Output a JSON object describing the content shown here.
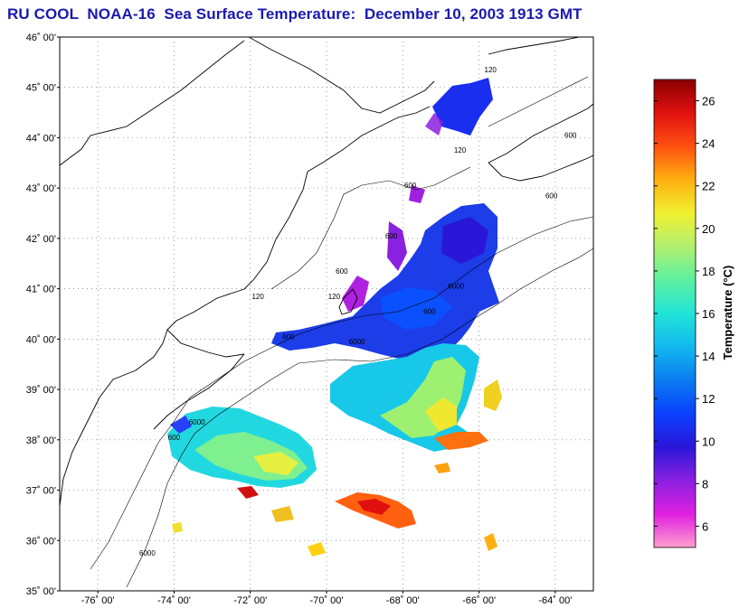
{
  "title": "RU COOL  NOAA-16  Sea Surface Temperature:  December 10, 2003 1913 GMT",
  "map": {
    "lon_range": [
      -77,
      -63
    ],
    "lat_range": [
      35,
      46
    ],
    "lat_labels": [
      "46˚ 00'",
      "45˚ 00'",
      "44˚ 00'",
      "43˚ 00'",
      "42˚ 00'",
      "41˚ 00'",
      "40˚ 00'",
      "39˚ 00'",
      "38˚ 00'",
      "37˚ 00'",
      "36˚ 00'",
      "35˚ 00'"
    ],
    "lat_values": [
      46,
      45,
      44,
      43,
      42,
      41,
      40,
      39,
      38,
      37,
      36,
      35
    ],
    "lon_labels": [
      "-76˚ 00'",
      "-74˚ 00'",
      "-72˚ 00'",
      "-70˚ 00'",
      "-68˚ 00'",
      "-66˚ 00'",
      "-64˚ 00'"
    ],
    "lon_values": [
      -76,
      -74,
      -72,
      -70,
      -68,
      -66,
      -64
    ],
    "grid": "dotted",
    "bathymetry_contours": [
      {
        "label": "120",
        "lon": -65.7,
        "lat": 45.3
      },
      {
        "label": "120",
        "lon": -66.5,
        "lat": 43.7
      },
      {
        "label": "600",
        "lon": -64.1,
        "lat": 42.8
      },
      {
        "label": "600",
        "lon": -68.3,
        "lat": 42.0
      },
      {
        "label": "600",
        "lon": -69.6,
        "lat": 41.3
      },
      {
        "label": "6000",
        "lon": -66.6,
        "lat": 41.0
      },
      {
        "label": "120",
        "lon": -69.8,
        "lat": 40.8
      },
      {
        "label": "600",
        "lon": -67.3,
        "lat": 40.5
      },
      {
        "label": "6000",
        "lon": -69.2,
        "lat": 39.9
      },
      {
        "label": "600",
        "lon": -71.0,
        "lat": 40.0
      },
      {
        "label": "120",
        "lon": -71.8,
        "lat": 40.8
      },
      {
        "label": "6000",
        "lon": -73.4,
        "lat": 38.3
      },
      {
        "label": "600",
        "lon": -74.0,
        "lat": 38.0
      },
      {
        "label": "600",
        "lon": -63.6,
        "lat": 44.0
      },
      {
        "label": "600",
        "lon": -67.8,
        "lat": 43.0
      },
      {
        "label": "6000",
        "lon": -74.7,
        "lat": 35.7
      }
    ]
  },
  "colorbar": {
    "label": "Temperature (°C)",
    "min": 5,
    "max": 27,
    "ticks": [
      6,
      8,
      10,
      12,
      14,
      16,
      18,
      20,
      22,
      24,
      26
    ],
    "stops": [
      "#ff9fd0",
      "#e020e0",
      "#8a20e0",
      "#2a16d8",
      "#0b40ff",
      "#0a7cf0",
      "#12b8ee",
      "#22e4d8",
      "#5cf0a0",
      "#b0f070",
      "#f0f030",
      "#ffb010",
      "#ff5010",
      "#e01010",
      "#8a0000"
    ]
  },
  "sst_patches": [
    {
      "lon": -66.9,
      "lat": 44.7,
      "temp": 8.6
    },
    {
      "lon": -67.8,
      "lat": 41.8,
      "temp": 8.5
    },
    {
      "lon": -69.0,
      "lat": 40.5,
      "temp": 9.2
    },
    {
      "lon": -69.5,
      "lat": 41.0,
      "temp": 7.0
    },
    {
      "lon": -68.0,
      "lat": 39.0,
      "temp": 15.0
    },
    {
      "lon": -71.7,
      "lat": 38.1,
      "temp": 14.5
    },
    {
      "lon": -68.5,
      "lat": 36.9,
      "temp": 22.5
    },
    {
      "lon": -66.5,
      "lat": 38.2,
      "temp": 22.5
    },
    {
      "lon": -71.9,
      "lat": 37.1,
      "temp": 24.0
    }
  ]
}
